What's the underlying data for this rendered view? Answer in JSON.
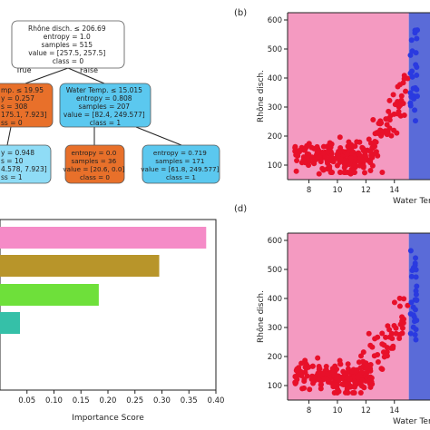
{
  "colors": {
    "root_node": "#ffffff",
    "orange_node": "#e8702a",
    "light_orange_node": "#f08a4c",
    "blue_node": "#5bc8ef",
    "light_blue_node": "#8fdcf6",
    "pink_region": "#f49ac1",
    "blue_region": "#5a6bd8",
    "red_point": "#e8102a",
    "blue_point": "#2a3ae0",
    "bar_pink": "#f58bc7",
    "bar_olive": "#b8952a",
    "bar_green": "#6ee03a",
    "bar_teal": "#35c0a8"
  },
  "panel_labels": {
    "b": "(b)",
    "d": "(d)"
  },
  "tree": {
    "edge_true": "True",
    "edge_false": "False",
    "root": {
      "lines": [
        "Rhône disch. ≤ 206.69",
        "entropy = 1.0",
        "samples = 515",
        "value = [257.5, 257.5]",
        "class = 0"
      ]
    },
    "left": {
      "lines": [
        "mp. ≤ 19.95",
        "y = 0.257",
        "s = 308",
        "175.1, 7.923]",
        "ss = 0"
      ]
    },
    "right": {
      "lines": [
        "Water Temp. ≤ 15.015",
        "entropy = 0.808",
        "samples = 207",
        "value = [82.4, 249.577]",
        "class = 1"
      ]
    },
    "leaf_ll": {
      "lines": [
        "y = 0.948",
        "s = 10",
        "4.578, 7.923]",
        "ss = 1"
      ]
    },
    "leaf_rl": {
      "lines": [
        "entropy = 0.0",
        "samples = 36",
        "value = [20.6, 0.0]",
        "class = 0"
      ]
    },
    "leaf_rr": {
      "lines": [
        "entropy = 0.719",
        "samples = 171",
        "value = [61.8, 249.577]",
        "class = 1"
      ]
    }
  },
  "chart_data": [
    {
      "type": "bar",
      "orientation": "horizontal",
      "xlabel": "Importance Score",
      "xlim": [
        0.0,
        0.4
      ],
      "x_ticks": [
        "0.05",
        "0.10",
        "0.15",
        "0.20",
        "0.25",
        "0.30",
        "0.35",
        "0.40"
      ],
      "bars": [
        {
          "value": 0.382,
          "color": "#f58bc7"
        },
        {
          "value": 0.295,
          "color": "#b8952a"
        },
        {
          "value": 0.183,
          "color": "#6ee03a"
        },
        {
          "value": 0.037,
          "color": "#35c0a8"
        }
      ]
    },
    {
      "type": "scatter",
      "panel": "(b)",
      "xlabel": "Water Ten",
      "ylabel": "Rhône disch.",
      "xlim": [
        6.5,
        16.5
      ],
      "ylim": [
        50,
        625
      ],
      "x_ticks": [
        "8",
        "10",
        "12",
        "14"
      ],
      "y_ticks": [
        "100",
        "200",
        "300",
        "400",
        "500",
        "600"
      ],
      "threshold_x": 15.015
    },
    {
      "type": "scatter",
      "panel": "(d)",
      "xlabel": "Water Ten",
      "ylabel": "Rhône disch.",
      "xlim": [
        6.5,
        16.5
      ],
      "ylim": [
        50,
        625
      ],
      "x_ticks": [
        "8",
        "10",
        "12",
        "14"
      ],
      "y_ticks": [
        "100",
        "200",
        "300",
        "400",
        "500",
        "600"
      ],
      "threshold_x": 15.015
    }
  ]
}
